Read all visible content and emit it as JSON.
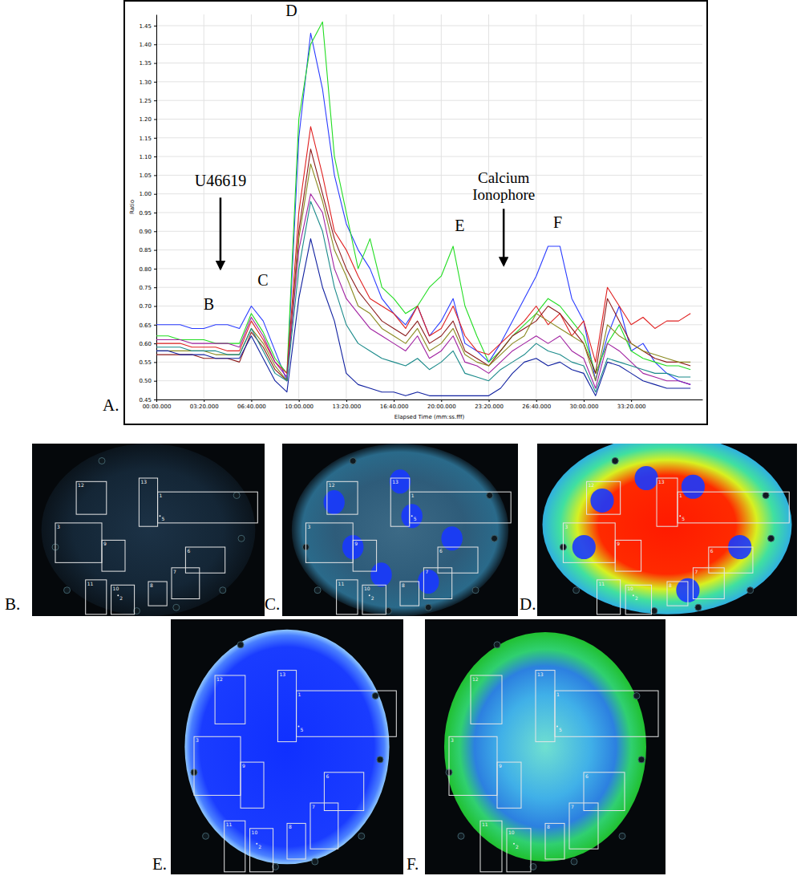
{
  "chart_data": {
    "type": "line",
    "x_label": "Elapsed Time (mm:ss.fff)",
    "y_label": "Ratio",
    "grid": true,
    "xlim": [
      0,
      2300
    ],
    "xticks": [
      {
        "value": 0,
        "label": "00:00.000"
      },
      {
        "value": 200,
        "label": "03:20.000"
      },
      {
        "value": 400,
        "label": "06:40.000"
      },
      {
        "value": 600,
        "label": "10:00.000"
      },
      {
        "value": 800,
        "label": "13:20.000"
      },
      {
        "value": 1000,
        "label": "16:40.000"
      },
      {
        "value": 1200,
        "label": "20:00.000"
      },
      {
        "value": 1400,
        "label": "23:20.000"
      },
      {
        "value": 1600,
        "label": "26:40.000"
      },
      {
        "value": 1800,
        "label": "30:00.000"
      },
      {
        "value": 2000,
        "label": "33:20.000"
      }
    ],
    "ylim": [
      0.45,
      1.48
    ],
    "yticks": [
      0.45,
      {
        "value": 0.5,
        "label": "0.50"
      },
      0.55,
      {
        "value": 0.6,
        "label": "0.60"
      },
      0.65,
      {
        "value": 0.7,
        "label": "0.70"
      },
      0.75,
      {
        "value": 0.8,
        "label": "0.80"
      },
      0.85,
      {
        "value": 0.9,
        "label": "0.90"
      },
      0.95,
      {
        "value": 1,
        "label": "1.00"
      },
      1.05,
      {
        "value": 1.1,
        "label": "1.10"
      },
      1.15,
      {
        "value": 1.2,
        "label": "1.20"
      },
      1.25,
      {
        "value": 1.3,
        "label": "1.30"
      },
      1.35,
      {
        "value": 1.4,
        "label": "1.40"
      },
      1.45
    ],
    "x": [
      0,
      50,
      100,
      150,
      200,
      250,
      300,
      350,
      400,
      450,
      500,
      550,
      600,
      650,
      700,
      750,
      800,
      850,
      900,
      950,
      1000,
      1050,
      1100,
      1150,
      1200,
      1250,
      1300,
      1350,
      1400,
      1450,
      1500,
      1550,
      1600,
      1650,
      1700,
      1750,
      1800,
      1850,
      1900,
      1950,
      2000,
      2050,
      2100,
      2150,
      2200,
      2250
    ],
    "series": [
      {
        "color": "#2a3cff",
        "values": [
          0.65,
          0.65,
          0.65,
          0.64,
          0.64,
          0.65,
          0.65,
          0.64,
          0.7,
          0.66,
          0.58,
          0.5,
          1.15,
          1.43,
          1.28,
          1.05,
          0.92,
          0.85,
          0.8,
          0.72,
          0.68,
          0.65,
          0.7,
          0.62,
          0.66,
          0.72,
          0.6,
          0.58,
          0.55,
          0.6,
          0.66,
          0.72,
          0.78,
          0.86,
          0.86,
          0.72,
          0.66,
          0.5,
          0.62,
          0.7,
          0.58,
          0.6,
          0.55,
          0.52,
          0.5,
          0.49
        ]
      },
      {
        "color": "#22dd22",
        "values": [
          0.62,
          0.62,
          0.61,
          0.61,
          0.61,
          0.6,
          0.6,
          0.6,
          0.68,
          0.63,
          0.56,
          0.52,
          1.2,
          1.4,
          1.46,
          1.1,
          0.95,
          0.8,
          0.88,
          0.75,
          0.72,
          0.68,
          0.7,
          0.75,
          0.78,
          0.86,
          0.7,
          0.62,
          0.55,
          0.58,
          0.62,
          0.65,
          0.68,
          0.72,
          0.7,
          0.66,
          0.62,
          0.52,
          0.6,
          0.65,
          0.58,
          0.56,
          0.55,
          0.54,
          0.54,
          0.53
        ]
      },
      {
        "color": "#e02020",
        "values": [
          0.6,
          0.6,
          0.6,
          0.59,
          0.59,
          0.59,
          0.58,
          0.58,
          0.66,
          0.61,
          0.55,
          0.52,
          0.95,
          1.18,
          1.05,
          0.9,
          0.85,
          0.78,
          0.72,
          0.7,
          0.68,
          0.64,
          0.7,
          0.62,
          0.64,
          0.7,
          0.62,
          0.58,
          0.57,
          0.6,
          0.63,
          0.66,
          0.7,
          0.65,
          0.68,
          0.62,
          0.66,
          0.55,
          0.75,
          0.7,
          0.65,
          0.67,
          0.64,
          0.66,
          0.66,
          0.68
        ]
      },
      {
        "color": "#8b1a1a",
        "values": [
          0.57,
          0.57,
          0.57,
          0.57,
          0.56,
          0.56,
          0.56,
          0.55,
          0.63,
          0.59,
          0.53,
          0.5,
          0.9,
          1.12,
          1.0,
          0.88,
          0.8,
          0.74,
          0.7,
          0.66,
          0.64,
          0.62,
          0.66,
          0.6,
          0.62,
          0.66,
          0.58,
          0.56,
          0.54,
          0.58,
          0.62,
          0.64,
          0.66,
          0.7,
          0.68,
          0.64,
          0.6,
          0.52,
          0.72,
          0.66,
          0.6,
          0.58,
          0.56,
          0.55,
          0.55,
          0.54
        ]
      },
      {
        "color": "#8a8a20",
        "values": [
          0.58,
          0.58,
          0.58,
          0.58,
          0.58,
          0.57,
          0.57,
          0.57,
          0.64,
          0.6,
          0.54,
          0.5,
          0.88,
          1.08,
          0.98,
          0.85,
          0.78,
          0.7,
          0.68,
          0.64,
          0.62,
          0.6,
          0.64,
          0.58,
          0.6,
          0.64,
          0.57,
          0.55,
          0.54,
          0.57,
          0.6,
          0.62,
          0.68,
          0.66,
          0.64,
          0.62,
          0.6,
          0.5,
          0.65,
          0.62,
          0.6,
          0.58,
          0.57,
          0.56,
          0.55,
          0.55
        ]
      },
      {
        "color": "#a020a0",
        "values": [
          0.61,
          0.61,
          0.61,
          0.6,
          0.6,
          0.6,
          0.6,
          0.59,
          0.67,
          0.62,
          0.55,
          0.51,
          0.85,
          1.0,
          0.95,
          0.8,
          0.72,
          0.68,
          0.64,
          0.62,
          0.6,
          0.58,
          0.62,
          0.56,
          0.58,
          0.62,
          0.55,
          0.54,
          0.52,
          0.55,
          0.58,
          0.6,
          0.62,
          0.6,
          0.62,
          0.58,
          0.56,
          0.48,
          0.6,
          0.58,
          0.55,
          0.52,
          0.51,
          0.5,
          0.5,
          0.49
        ]
      },
      {
        "color": "#1a8a8a",
        "values": [
          0.59,
          0.59,
          0.59,
          0.58,
          0.58,
          0.58,
          0.57,
          0.57,
          0.64,
          0.58,
          0.52,
          0.5,
          0.8,
          0.98,
          0.9,
          0.75,
          0.65,
          0.6,
          0.58,
          0.56,
          0.55,
          0.54,
          0.56,
          0.53,
          0.55,
          0.58,
          0.52,
          0.51,
          0.5,
          0.53,
          0.55,
          0.57,
          0.6,
          0.58,
          0.57,
          0.55,
          0.54,
          0.47,
          0.56,
          0.55,
          0.54,
          0.53,
          0.52,
          0.52,
          0.51,
          0.51
        ]
      },
      {
        "color": "#1020a0",
        "values": [
          0.58,
          0.58,
          0.57,
          0.57,
          0.57,
          0.56,
          0.56,
          0.56,
          0.62,
          0.56,
          0.5,
          0.47,
          0.72,
          0.88,
          0.75,
          0.66,
          0.52,
          0.49,
          0.48,
          0.47,
          0.47,
          0.46,
          0.47,
          0.46,
          0.46,
          0.46,
          0.46,
          0.46,
          0.46,
          0.48,
          0.52,
          0.55,
          0.56,
          0.54,
          0.55,
          0.53,
          0.52,
          0.46,
          0.55,
          0.54,
          0.52,
          0.5,
          0.49,
          0.48,
          0.48,
          0.48
        ]
      }
    ],
    "annotations": [
      {
        "text": "U46619",
        "x": 270,
        "y": 1.02,
        "arrow_from": 0.99,
        "arrow_to": 0.8
      },
      {
        "text": "Calcium Ionophore",
        "x": 1463,
        "y": 1.03,
        "arrow_from": 0.96,
        "arrow_to": 0.81
      },
      {
        "text": "B",
        "x": 221,
        "y": 0.69
      },
      {
        "text": "C",
        "x": 449,
        "y": 0.755
      },
      {
        "text": "D",
        "x": 569,
        "y": 1.475
      },
      {
        "text": "E",
        "x": 1278,
        "y": 0.9
      },
      {
        "text": "F",
        "x": 1691,
        "y": 0.91
      }
    ]
  },
  "figure": {
    "panel_labels": [
      "A.",
      "B.",
      "C.",
      "D.",
      "E.",
      "F."
    ],
    "roi_labels": [
      "12",
      "13",
      "1",
      "3",
      "9",
      "6",
      "11",
      "10",
      "8",
      "7",
      "2",
      "5"
    ]
  }
}
